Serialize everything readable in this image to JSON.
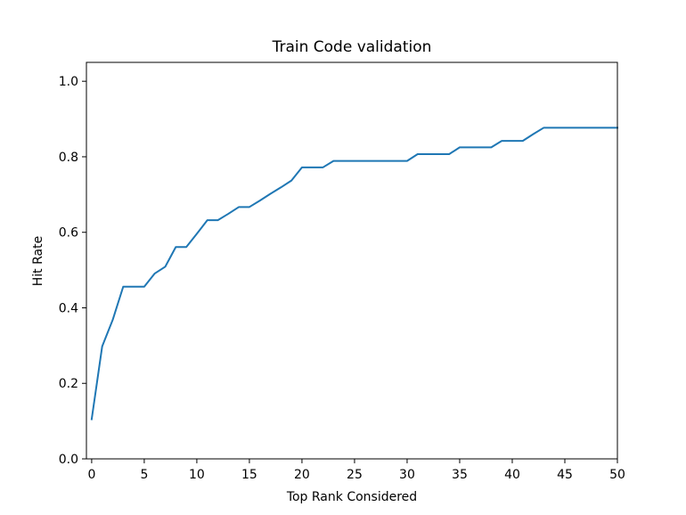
{
  "chart_data": {
    "type": "line",
    "title": "Train Code validation",
    "xlabel": "Top Rank Considered",
    "ylabel": "Hit Rate",
    "xlim": [
      -0.5,
      50
    ],
    "ylim": [
      0.0,
      1.05
    ],
    "xticks": [
      0,
      5,
      10,
      15,
      20,
      25,
      30,
      35,
      40,
      45,
      50
    ],
    "yticks": [
      0.0,
      0.2,
      0.4,
      0.6,
      0.8,
      1.0
    ],
    "xtick_labels": [
      "0",
      "5",
      "10",
      "15",
      "20",
      "25",
      "30",
      "35",
      "40",
      "45",
      "50"
    ],
    "ytick_labels": [
      "0.0",
      "0.2",
      "0.4",
      "0.6",
      "0.8",
      "1.0"
    ],
    "grid": false,
    "color": "#1f77b4",
    "series": [
      {
        "x": [
          0,
          1,
          2,
          3,
          4,
          5,
          6,
          7,
          8,
          9,
          10,
          11,
          12,
          13,
          14,
          15,
          16,
          17,
          18,
          19,
          20,
          21,
          22,
          23,
          24,
          25,
          26,
          27,
          28,
          29,
          30,
          31,
          32,
          33,
          34,
          35,
          36,
          37,
          38,
          39,
          40,
          41,
          42,
          43,
          44,
          45,
          46,
          47,
          48,
          49,
          50
        ],
        "values": [
          0.105,
          0.298,
          0.368,
          0.456,
          0.456,
          0.456,
          0.491,
          0.509,
          0.561,
          0.561,
          0.596,
          0.632,
          0.632,
          0.649,
          0.667,
          0.667,
          0.684,
          0.702,
          0.719,
          0.737,
          0.772,
          0.772,
          0.772,
          0.789,
          0.789,
          0.789,
          0.789,
          0.789,
          0.789,
          0.789,
          0.789,
          0.807,
          0.807,
          0.807,
          0.807,
          0.825,
          0.825,
          0.825,
          0.825,
          0.842,
          0.842,
          0.842,
          0.86,
          0.877,
          0.877,
          0.877,
          0.877,
          0.877,
          0.877,
          0.877,
          0.877
        ]
      }
    ]
  }
}
